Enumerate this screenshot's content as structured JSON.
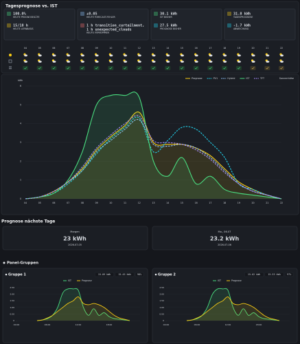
{
  "header": {
    "title": "Tagesprognose vs. IST"
  },
  "kpi_cards": [
    [
      {
        "value": "100.0%",
        "label": "HEUTE PROGNOSEGÜTE",
        "color": "#4ade80"
      },
      {
        "value": "15/18 h",
        "label": "HEUTE LERNBASIS",
        "color": "#facc15"
      }
    ],
    [
      {
        "value": "+0.05",
        "label": "HEUTE FORECAST-FEHLER",
        "color": "#93c5fd"
      },
      {
        "value": [
          "1 h transition_curtailment,",
          "1 h unexpected_clouds"
        ],
        "label": "HEUTE VORKOMMEN",
        "color": "#f87171"
      }
    ],
    [
      {
        "value": "30.1 kWh",
        "label": "IST BISHER",
        "color": "#4ade80"
      },
      {
        "value": "27.5 kWh",
        "label": "PROGNOSE BISHER",
        "color": "#22d3ee"
      }
    ],
    [
      {
        "value": "31.8 kWh",
        "label": "TAGESPROGNOSE",
        "color": "#facc15"
      },
      {
        "value": "-1.7 kWh",
        "label": "ABWEICHUNG",
        "color": "#22d3ee"
      }
    ]
  ],
  "weather": {
    "hours": [
      "04",
      "05",
      "06",
      "07",
      "08",
      "09",
      "10",
      "11",
      "12",
      "13",
      "14",
      "15",
      "16",
      "17",
      "18",
      "19",
      "20",
      "21",
      "22"
    ]
  },
  "chart_data": [
    {
      "type": "line",
      "ylabel": "kWh",
      "sun_label": "Sonnenhöhe",
      "categories": [
        "04",
        "05",
        "06",
        "07",
        "08",
        "09",
        "10",
        "11",
        "12",
        "13",
        "14",
        "15",
        "16",
        "17",
        "18",
        "19",
        "20",
        "21",
        "22"
      ],
      "ylim": [
        0,
        6
      ],
      "yticks": [
        0,
        1,
        2,
        3,
        4,
        5,
        6
      ],
      "grid": true,
      "series": [
        {
          "name": "Prognose",
          "color": "#facc15",
          "fill": true,
          "values": [
            0,
            0.1,
            0.4,
            0.9,
            1.6,
            2.6,
            3.3,
            3.9,
            4.6,
            3.0,
            2.9,
            2.9,
            2.7,
            2.3,
            1.6,
            0.9,
            0.5,
            0.2,
            0
          ]
        },
        {
          "name": "PV1",
          "color": "#22d3ee",
          "dash": true,
          "values": [
            0,
            0.1,
            0.3,
            0.8,
            1.5,
            2.4,
            3.2,
            3.8,
            4.3,
            2.5,
            3.1,
            3.8,
            3.7,
            3.0,
            2.2,
            0.8,
            0.5,
            0.2,
            0
          ]
        },
        {
          "name": "Hybrid",
          "color": "#93c5fd",
          "dash": true,
          "values": [
            0,
            0.1,
            0.4,
            0.9,
            1.5,
            2.5,
            3.1,
            3.7,
            4.2,
            2.9,
            2.8,
            2.9,
            2.7,
            2.2,
            1.5,
            0.8,
            0.4,
            0.2,
            0
          ]
        },
        {
          "name": "IST",
          "color": "#4ade80",
          "fill": true,
          "values": [
            0,
            0.1,
            0.3,
            1.0,
            2.5,
            5.0,
            5.5,
            5.5,
            5.4,
            2.0,
            1.2,
            2.2,
            0.8,
            1.2,
            0.5,
            0.3,
            0.2,
            0.1,
            0
          ]
        },
        {
          "name": "TFT",
          "color": "#a78bfa",
          "dash": true,
          "values": [
            0,
            0.1,
            0.4,
            0.9,
            1.7,
            2.7,
            3.4,
            4.0,
            4.4,
            3.1,
            3.0,
            2.9,
            2.6,
            2.1,
            1.4,
            0.8,
            0.4,
            0.2,
            0
          ]
        }
      ]
    },
    {
      "type": "line",
      "title": "Gruppe 1",
      "badges": [
        "15.09 kWh",
        "15.45 kWh",
        "98%"
      ],
      "x": [
        4,
        5,
        6,
        7,
        8,
        9,
        10,
        11,
        12,
        13,
        14,
        15,
        16,
        17,
        18,
        19,
        20,
        21,
        22
      ],
      "xlim": [
        0,
        24
      ],
      "xticks": [
        {
          "value": 0,
          "label": "00:00"
        },
        {
          "value": 6,
          "label": "06:00"
        },
        {
          "value": 12,
          "label": "12:00"
        },
        {
          "value": 18,
          "label": "18:00"
        }
      ],
      "ylim": [
        0,
        2.5
      ],
      "yticks": [
        0,
        {
          "value": 0.5,
          "label": "0.50"
        },
        {
          "value": 1,
          "label": "1.00"
        },
        {
          "value": 1.5,
          "label": "1.50"
        },
        {
          "value": 2,
          "label": "2.00"
        },
        {
          "value": 2.5,
          "label": "2.50"
        }
      ],
      "grid": true,
      "series": [
        {
          "name": "IST",
          "color": "#4ade80",
          "fill": true,
          "values": [
            0,
            0.05,
            0.15,
            0.4,
            1.0,
            2.1,
            2.4,
            2.4,
            2.3,
            1.0,
            0.4,
            0.9,
            0.4,
            0.6,
            0.3,
            0.15,
            0.1,
            0.05,
            0
          ]
        },
        {
          "name": "Prognose",
          "color": "#facc15",
          "fill": true,
          "values": [
            0,
            0.05,
            0.2,
            0.4,
            0.7,
            1.0,
            1.3,
            1.5,
            1.8,
            1.3,
            1.2,
            1.3,
            1.2,
            1.0,
            0.7,
            0.4,
            0.2,
            0.1,
            0
          ]
        }
      ]
    },
    {
      "type": "line",
      "title": "Gruppe 2",
      "badges": [
        "15.02 kWh",
        "15.53 kWh",
        "97%"
      ],
      "x": [
        4,
        5,
        6,
        7,
        8,
        9,
        10,
        11,
        12,
        13,
        14,
        15,
        16,
        17,
        18,
        19,
        20,
        21,
        22
      ],
      "xlim": [
        0,
        24
      ],
      "xticks": [
        {
          "value": 0,
          "label": "00:00"
        },
        {
          "value": 6,
          "label": "06:00"
        },
        {
          "value": 12,
          "label": "12:00"
        },
        {
          "value": 18,
          "label": "18:00"
        }
      ],
      "ylim": [
        0,
        2.5
      ],
      "yticks": [
        0,
        {
          "value": 0.5,
          "label": "0.50"
        },
        {
          "value": 1,
          "label": "1.00"
        },
        {
          "value": 1.5,
          "label": "1.50"
        },
        {
          "value": 2,
          "label": "2.00"
        },
        {
          "value": 2.5,
          "label": "2.50"
        }
      ],
      "grid": true,
      "series": [
        {
          "name": "IST",
          "color": "#4ade80",
          "fill": true,
          "values": [
            0,
            0.05,
            0.15,
            0.4,
            1.0,
            2.0,
            2.4,
            2.4,
            2.3,
            1.0,
            0.4,
            0.9,
            0.4,
            0.6,
            0.3,
            0.15,
            0.1,
            0.05,
            0
          ]
        },
        {
          "name": "Prognose",
          "color": "#facc15",
          "fill": true,
          "values": [
            0,
            0.05,
            0.2,
            0.4,
            0.7,
            1.0,
            1.3,
            1.5,
            1.8,
            1.3,
            1.2,
            1.3,
            1.2,
            1.0,
            0.7,
            0.4,
            0.2,
            0.1,
            0
          ]
        }
      ]
    }
  ],
  "forecast": {
    "title": "Prognose nächste Tage",
    "days": [
      {
        "label": "Morgen",
        "value": "23 kWh",
        "date": "2026-07-05"
      },
      {
        "label": "Mo., 06.07",
        "value": "23.2 kWh",
        "date": "2026-07-06"
      }
    ]
  },
  "groups": {
    "title": "Panel-Gruppen"
  }
}
